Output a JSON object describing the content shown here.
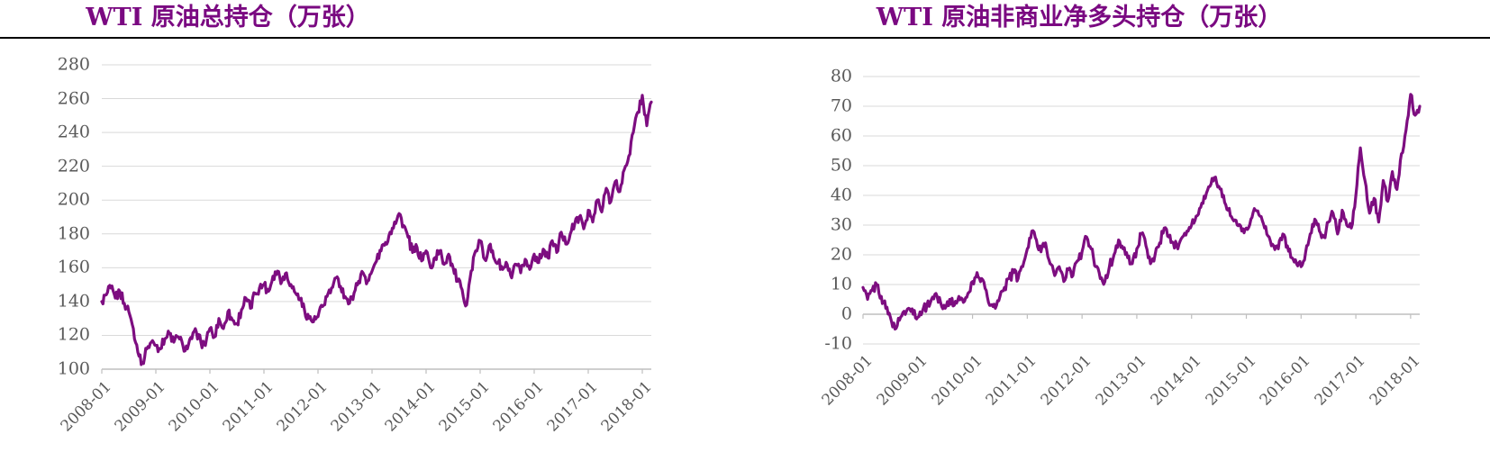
{
  "page": {
    "background_color": "#FFFFFF",
    "header_rule_color": "#000000",
    "grid_color": "#D9D9D9",
    "axis_color": "#BFBFBF",
    "label_color": "#595959"
  },
  "chart_data": [
    {
      "type": "line",
      "title": "WTI 原油总持仓（万张）",
      "title_color": "#7A0981",
      "line_color": "#7D0D80",
      "xlabel": "",
      "ylabel": "",
      "ylim": [
        100,
        280
      ],
      "ytick_step": 20,
      "ytick_labels": [
        "280",
        "260",
        "240",
        "220",
        "200",
        "180",
        "160",
        "140",
        "120",
        "100"
      ],
      "x_tick_labels": [
        "2008-01",
        "2009-01",
        "2010-01",
        "2011-01",
        "2012-01",
        "2013-01",
        "2014-01",
        "2015-01",
        "2016-01",
        "2017-01",
        "2018-01"
      ],
      "x_start": "2008-01",
      "x_interval": "monthly",
      "grid": true,
      "legend": false,
      "category_axis_at_value": 100,
      "jitter": 3.0,
      "values": [
        140,
        144,
        148,
        142,
        146,
        139,
        134,
        124,
        110,
        104,
        112,
        116,
        114,
        112,
        118,
        121,
        116,
        119,
        114,
        112,
        118,
        122,
        116,
        114,
        124,
        119,
        130,
        124,
        134,
        129,
        127,
        135,
        142,
        136,
        145,
        148,
        150,
        146,
        155,
        158,
        152,
        157,
        150,
        145,
        141,
        135,
        130,
        128,
        131,
        137,
        143,
        148,
        154,
        149,
        143,
        139,
        145,
        152,
        157,
        152,
        158,
        164,
        170,
        175,
        181,
        187,
        192,
        185,
        178,
        169,
        172,
        164,
        170,
        160,
        166,
        170,
        162,
        168,
        160,
        152,
        147,
        138,
        158,
        170,
        176,
        165,
        173,
        166,
        163,
        159,
        162,
        154,
        162,
        157,
        165,
        159,
        168,
        163,
        171,
        166,
        176,
        169,
        181,
        174,
        180,
        186,
        190,
        183,
        194,
        187,
        200,
        193,
        207,
        199,
        211,
        205,
        218,
        226,
        240,
        252,
        262,
        244,
        258
      ]
    },
    {
      "type": "line",
      "title": "WTI 原油非商业净多头持仓（万张）",
      "title_color": "#7A0981",
      "line_color": "#7D0D80",
      "xlabel": "",
      "ylabel": "",
      "ylim": [
        -10,
        80
      ],
      "ytick_step": 10,
      "ytick_labels": [
        "80",
        "70",
        "60",
        "50",
        "40",
        "30",
        "20",
        "10",
        "0",
        "-10"
      ],
      "x_tick_labels": [
        "2008-01",
        "2009-01",
        "2010-01",
        "2011-01",
        "2012-01",
        "2013-01",
        "2014-01",
        "2015-01",
        "2016-01",
        "2017-01",
        "2018-01"
      ],
      "x_start": "2008-01",
      "x_interval": "monthly",
      "grid": true,
      "legend": false,
      "category_axis_at_value": 0,
      "jitter": 1.6,
      "values": [
        9,
        5,
        8,
        10,
        6,
        2,
        -1,
        -5,
        -2,
        1,
        2,
        0,
        -1,
        1,
        3,
        5,
        7,
        4,
        2,
        5,
        3,
        6,
        4,
        7,
        11,
        14,
        12,
        8,
        3,
        2,
        6,
        9,
        12,
        14,
        12,
        16,
        22,
        28,
        25,
        21,
        24,
        17,
        13,
        16,
        11,
        15,
        13,
        18,
        21,
        26,
        22,
        16,
        12,
        11,
        16,
        20,
        25,
        22,
        19,
        17,
        22,
        27,
        23,
        17,
        20,
        24,
        29,
        26,
        24,
        22,
        26,
        28,
        30,
        33,
        36,
        39,
        43,
        46,
        43,
        40,
        35,
        32,
        30,
        28,
        29,
        32,
        35,
        33,
        29,
        26,
        23,
        22,
        27,
        23,
        19,
        17,
        16,
        21,
        27,
        32,
        28,
        26,
        31,
        34,
        27,
        35,
        30,
        29,
        40,
        56,
        45,
        34,
        39,
        31,
        45,
        38,
        48,
        42,
        54,
        62,
        74,
        67,
        70
      ]
    }
  ]
}
